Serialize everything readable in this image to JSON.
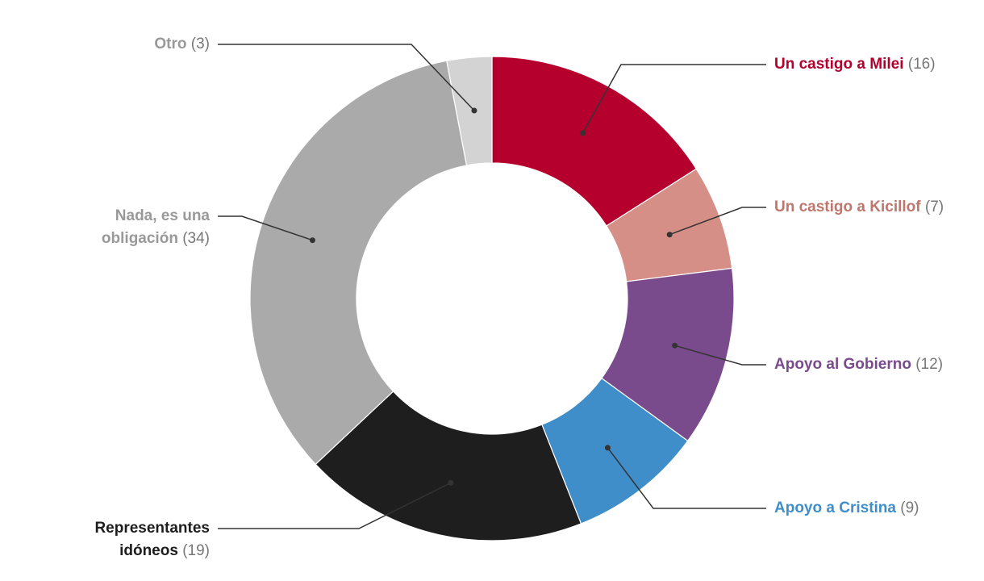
{
  "chart_data": {
    "type": "donut",
    "categories": [
      "Un castigo a Milei",
      "Un castigo a Kicillof",
      "Apoyo al Gobierno",
      "Apoyo a Cristina",
      "Representantes idóneos",
      "Nada, es una obligación",
      "Otro"
    ],
    "values": [
      16,
      7,
      12,
      9,
      19,
      34,
      3
    ],
    "value_labels": [
      "(16)",
      "(7)",
      "(12)",
      "(9)",
      "(19)",
      "(34)",
      "(3)"
    ],
    "colors": [
      "#b5002e",
      "#d68f86",
      "#7a4b8c",
      "#3f8ec9",
      "#1e1e1e",
      "#aaaaaa",
      "#d3d3d3"
    ],
    "label_colors": [
      "#b5002e",
      "#c0766c",
      "#7a4b8c",
      "#3f8ec9",
      "#1e1e1e",
      "#999999",
      "#999999"
    ]
  }
}
